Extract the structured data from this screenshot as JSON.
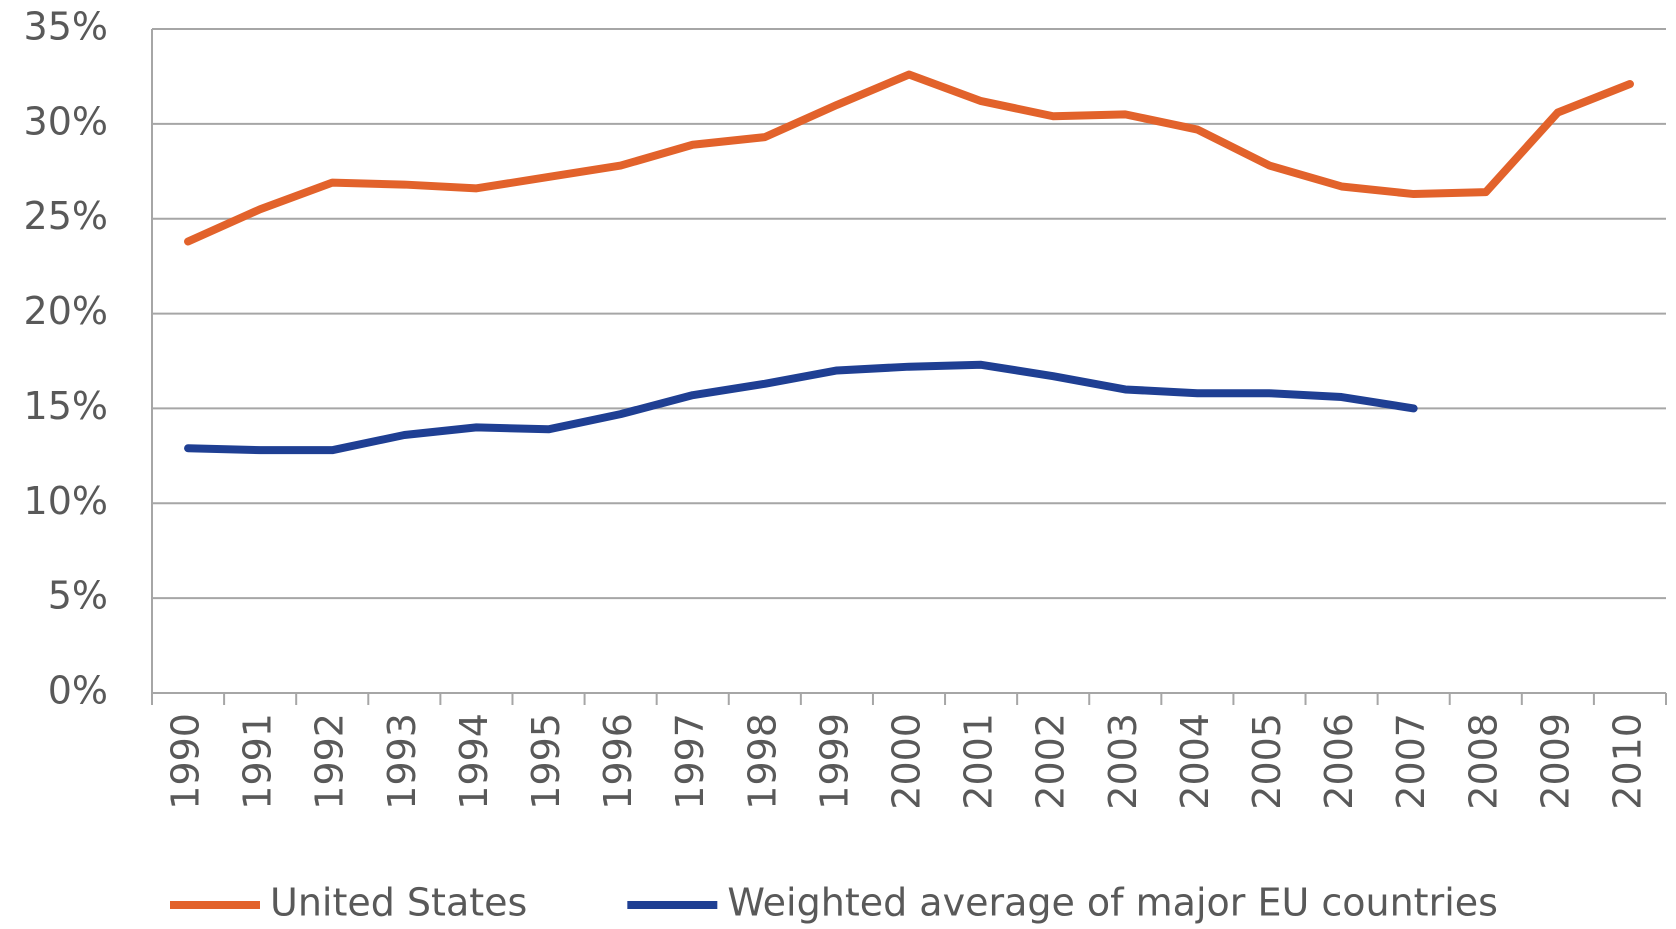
{
  "chart_data": {
    "type": "line",
    "categories": [
      "1990",
      "1991",
      "1992",
      "1993",
      "1994",
      "1995",
      "1996",
      "1997",
      "1998",
      "1999",
      "2000",
      "2001",
      "2002",
      "2003",
      "2004",
      "2005",
      "2006",
      "2007",
      "2008",
      "2009",
      "2010"
    ],
    "series": [
      {
        "name": "United States",
        "color": "#e2622b",
        "values": [
          23.8,
          25.5,
          26.9,
          26.8,
          26.6,
          27.2,
          27.8,
          28.9,
          29.3,
          31.0,
          32.6,
          31.2,
          30.4,
          30.5,
          29.7,
          27.8,
          26.7,
          26.3,
          26.4,
          30.6,
          32.1
        ]
      },
      {
        "name": "Weighted average of major EU countries",
        "color": "#1f3f93",
        "values": [
          12.9,
          12.8,
          12.8,
          13.6,
          14.0,
          13.9,
          14.7,
          15.7,
          16.3,
          17.0,
          17.2,
          17.3,
          16.7,
          16.0,
          15.8,
          15.8,
          15.6,
          15.0,
          null,
          null,
          null
        ]
      }
    ],
    "ylim": [
      0,
      35
    ],
    "yticks": [
      {
        "value": 0,
        "label": "0%"
      },
      {
        "value": 5,
        "label": "5%"
      },
      {
        "value": 10,
        "label": "10%"
      },
      {
        "value": 15,
        "label": "15%"
      },
      {
        "value": 20,
        "label": "20%"
      },
      {
        "value": 25,
        "label": "25%"
      },
      {
        "value": 30,
        "label": "30%"
      },
      {
        "value": 35,
        "label": "35%"
      }
    ],
    "grid": true,
    "legend": "bottom"
  }
}
